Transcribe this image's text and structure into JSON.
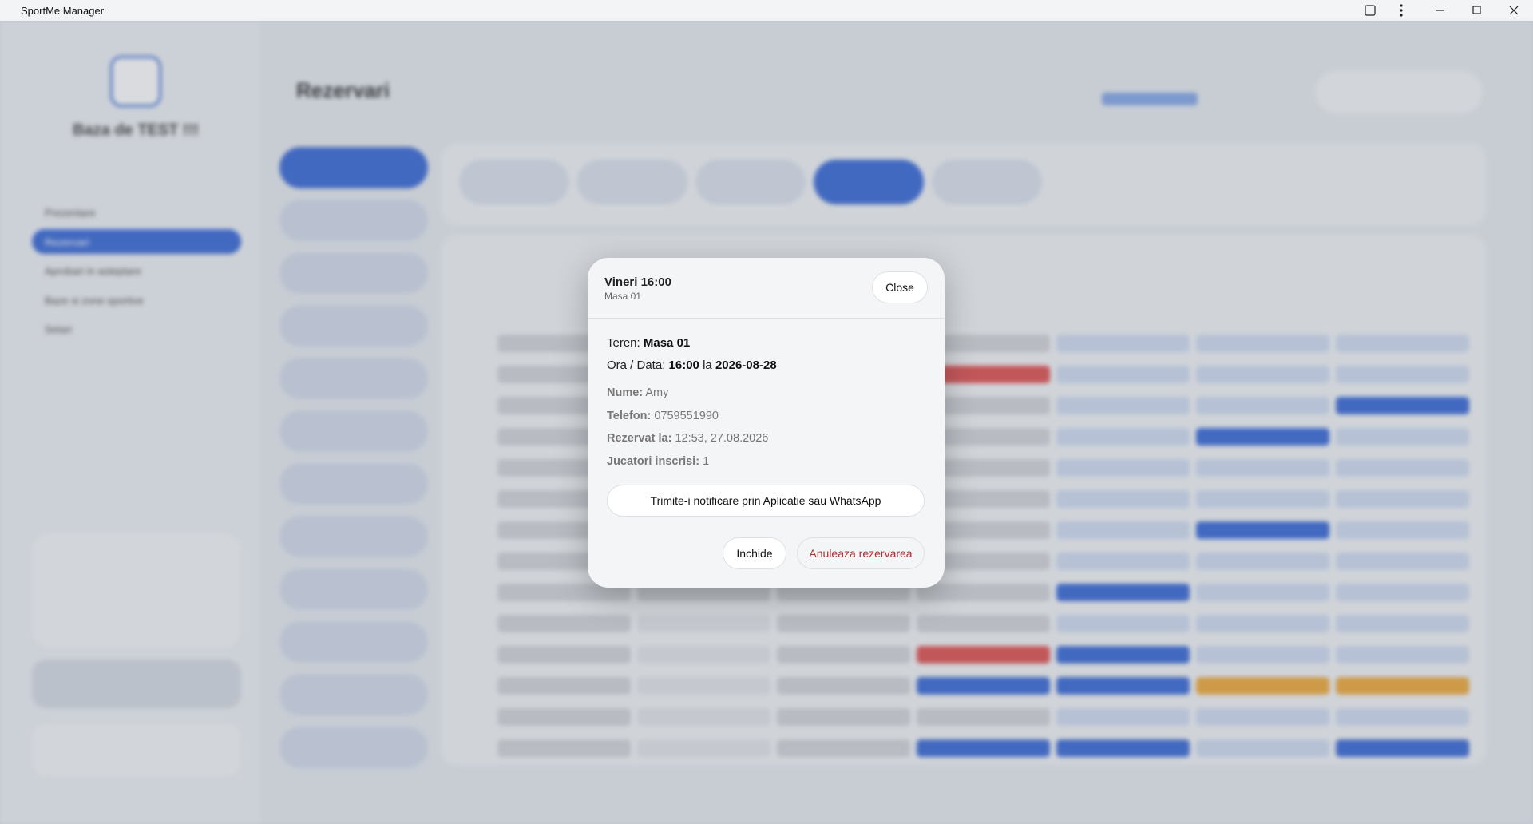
{
  "window": {
    "title": "SportMe Manager"
  },
  "background": {
    "app_name": "Baza de TEST !!!",
    "page_title": "Rezervari",
    "nav": [
      "Prezentare",
      "Rezervari",
      "Aprobari in asteptare",
      "Baze si zone sportive",
      "Setari"
    ]
  },
  "modal": {
    "title": "Vineri 16:00",
    "subtitle": "Masa 01",
    "close": "Close",
    "court": {
      "label": "Teren:",
      "value": "Masa 01"
    },
    "when": {
      "label": "Ora / Data:",
      "time": "16:00",
      "joiner": "la",
      "date": "2026-08-28"
    },
    "details": [
      {
        "label": "Nume:",
        "value": "Amy"
      },
      {
        "label": "Telefon:",
        "value": "0759551990"
      },
      {
        "label": "Rezervat la:",
        "value": "12:53, 27.08.2026"
      },
      {
        "label": "Jucatori inscrisi:",
        "value": "1"
      }
    ],
    "notify_button": "Trimite-i notificare prin Aplicatie sau WhatsApp",
    "close_button": "Inchide",
    "cancel_button": "Anuleaza rezervarea"
  }
}
